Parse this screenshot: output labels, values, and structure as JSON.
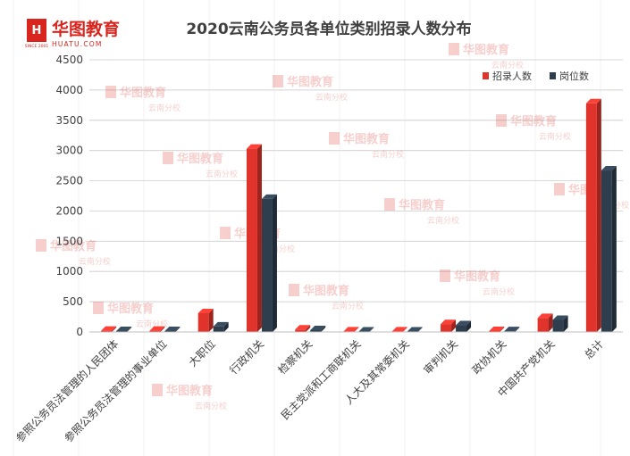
{
  "logo": {
    "brand": "华图教育",
    "domain": "HUATU.COM",
    "since": "SINCE 2001"
  },
  "watermark": {
    "brand": "华图教育",
    "branch": "云南分校"
  },
  "colors": {
    "series_a": "#e0332b",
    "series_b": "#2e3e4e",
    "grid": "#d9d9d9",
    "logo_red": "#d9251d"
  },
  "chart_data": {
    "type": "bar",
    "title": "2020云南公务员各单位类别招录人数分布",
    "xlabel": "",
    "ylabel": "",
    "ylim": [
      0,
      4500
    ],
    "yticks": [
      0,
      500,
      1000,
      1500,
      2000,
      2500,
      3000,
      3500,
      4000,
      4500
    ],
    "grid": true,
    "legend_position": "top-right",
    "categories": [
      "参照公务员法管理的人民团体",
      "参照公务员法管理的事业单位",
      "大职位",
      "行政机关",
      "检察机关",
      "民主党派和工商联机关",
      "人大及其常委机关",
      "审判机关",
      "政协机关",
      "中国共产党机关",
      "总计"
    ],
    "series": [
      {
        "name": "招录人数",
        "values": [
          20,
          20,
          310,
          3030,
          40,
          10,
          10,
          130,
          15,
          230,
          3780
        ]
      },
      {
        "name": "岗位数",
        "values": [
          15,
          15,
          90,
          2200,
          30,
          8,
          8,
          110,
          12,
          200,
          2670
        ]
      }
    ]
  }
}
